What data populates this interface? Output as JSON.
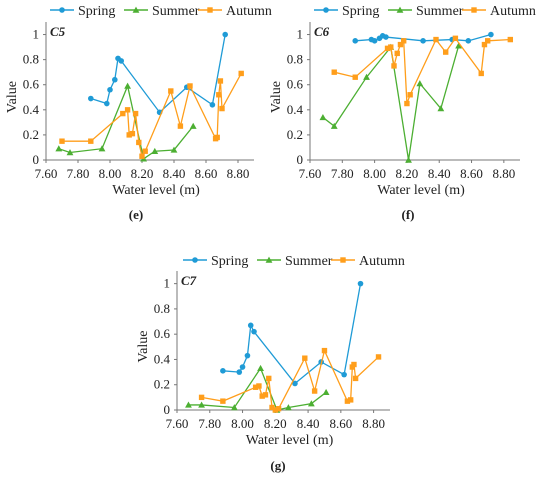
{
  "chart_data": [
    {
      "type": "line",
      "panel_tag": "C5",
      "caption": "(e)",
      "xlabel": "Water level (m)",
      "ylabel": "Value",
      "xlim": [
        7.6,
        8.9
      ],
      "ylim": [
        0,
        1.1
      ],
      "xticks": [
        "7.60",
        "7.80",
        "8.00",
        "8.20",
        "8.40",
        "8.60",
        "8.80"
      ],
      "yticks": [
        "0",
        "0.2",
        "0.4",
        "0.6",
        "0.8",
        "1"
      ],
      "legend": "top",
      "grid": false,
      "series": [
        {
          "name": "Spring",
          "color": "#1f9bd6",
          "marker": "circle",
          "x": [
            7.88,
            7.98,
            8.0,
            8.03,
            8.05,
            8.07,
            8.31,
            8.48,
            8.64,
            8.72
          ],
          "y": [
            0.49,
            0.45,
            0.56,
            0.64,
            0.81,
            0.79,
            0.38,
            0.58,
            0.44,
            1.0
          ]
        },
        {
          "name": "Summer",
          "color": "#4caf32",
          "marker": "triangle",
          "x": [
            7.68,
            7.75,
            7.95,
            8.11,
            8.21,
            8.28,
            8.4,
            8.52
          ],
          "y": [
            0.09,
            0.06,
            0.09,
            0.59,
            0.01,
            0.07,
            0.08,
            0.27
          ]
        },
        {
          "name": "Autumn",
          "color": "#ff9e1b",
          "marker": "square",
          "x": [
            7.7,
            7.88,
            8.08,
            8.11,
            8.12,
            8.14,
            8.16,
            8.18,
            8.2,
            8.22,
            8.38,
            8.44,
            8.5,
            8.66,
            8.67,
            8.68,
            8.69,
            8.7,
            8.82
          ],
          "y": [
            0.15,
            0.15,
            0.37,
            0.4,
            0.2,
            0.21,
            0.37,
            0.14,
            0.03,
            0.07,
            0.55,
            0.27,
            0.59,
            0.17,
            0.18,
            0.52,
            0.63,
            0.41,
            0.69
          ]
        }
      ]
    },
    {
      "type": "line",
      "panel_tag": "C6",
      "caption": "(f)",
      "xlabel": "Water level (m)",
      "ylabel": "Value",
      "xlim": [
        7.6,
        8.9
      ],
      "ylim": [
        0,
        1.1
      ],
      "xticks": [
        "7.60",
        "7.80",
        "8.00",
        "8.20",
        "8.40",
        "8.60",
        "8.80"
      ],
      "yticks": [
        "0",
        "0.2",
        "0.4",
        "0.6",
        "0.8",
        "1"
      ],
      "legend": "top",
      "grid": false,
      "series": [
        {
          "name": "Spring",
          "color": "#1f9bd6",
          "marker": "circle",
          "x": [
            7.88,
            7.98,
            8.0,
            8.03,
            8.05,
            8.07,
            8.3,
            8.48,
            8.58,
            8.72
          ],
          "y": [
            0.95,
            0.96,
            0.95,
            0.97,
            0.99,
            0.98,
            0.95,
            0.96,
            0.95,
            1.0
          ]
        },
        {
          "name": "Summer",
          "color": "#4caf32",
          "marker": "triangle",
          "x": [
            7.68,
            7.75,
            7.95,
            8.1,
            8.21,
            8.28,
            8.41,
            8.52
          ],
          "y": [
            0.34,
            0.27,
            0.66,
            0.9,
            0.0,
            0.61,
            0.41,
            0.91
          ]
        },
        {
          "name": "Autumn",
          "color": "#ff9e1b",
          "marker": "square",
          "x": [
            7.75,
            7.88,
            8.08,
            8.1,
            8.12,
            8.14,
            8.16,
            8.18,
            8.2,
            8.22,
            8.38,
            8.44,
            8.5,
            8.66,
            8.68,
            8.7,
            8.84
          ],
          "y": [
            0.7,
            0.66,
            0.89,
            0.9,
            0.75,
            0.85,
            0.92,
            0.95,
            0.45,
            0.52,
            0.96,
            0.86,
            0.97,
            0.69,
            0.92,
            0.95,
            0.96
          ]
        }
      ]
    },
    {
      "type": "line",
      "panel_tag": "C7",
      "caption": "(g)",
      "xlabel": "Water level (m)",
      "ylabel": "Value",
      "xlim": [
        7.6,
        8.9
      ],
      "ylim": [
        0,
        1.1
      ],
      "xticks": [
        "7.60",
        "7.80",
        "8.00",
        "8.20",
        "8.40",
        "8.60",
        "8.80"
      ],
      "yticks": [
        "0",
        "0.2",
        "0.4",
        "0.6",
        "0.8",
        "1"
      ],
      "legend": "top",
      "grid": false,
      "series": [
        {
          "name": "Spring",
          "color": "#1f9bd6",
          "marker": "circle",
          "x": [
            7.88,
            7.98,
            8.0,
            8.03,
            8.05,
            8.07,
            8.32,
            8.48,
            8.62,
            8.72
          ],
          "y": [
            0.31,
            0.3,
            0.34,
            0.43,
            0.67,
            0.62,
            0.21,
            0.38,
            0.28,
            1.0
          ]
        },
        {
          "name": "Summer",
          "color": "#4caf32",
          "marker": "triangle",
          "x": [
            7.67,
            7.75,
            7.95,
            8.11,
            8.21,
            8.28,
            8.42,
            8.51
          ],
          "y": [
            0.04,
            0.04,
            0.02,
            0.33,
            0.0,
            0.02,
            0.05,
            0.14
          ]
        },
        {
          "name": "Autumn",
          "color": "#ff9e1b",
          "marker": "square",
          "x": [
            7.75,
            7.88,
            8.08,
            8.1,
            8.12,
            8.14,
            8.16,
            8.18,
            8.2,
            8.22,
            8.38,
            8.44,
            8.5,
            8.64,
            8.66,
            8.67,
            8.68,
            8.69,
            8.83
          ],
          "y": [
            0.1,
            0.07,
            0.18,
            0.19,
            0.11,
            0.12,
            0.25,
            0.02,
            0.0,
            0.01,
            0.41,
            0.15,
            0.47,
            0.07,
            0.08,
            0.34,
            0.36,
            0.25,
            0.42
          ]
        }
      ]
    }
  ]
}
